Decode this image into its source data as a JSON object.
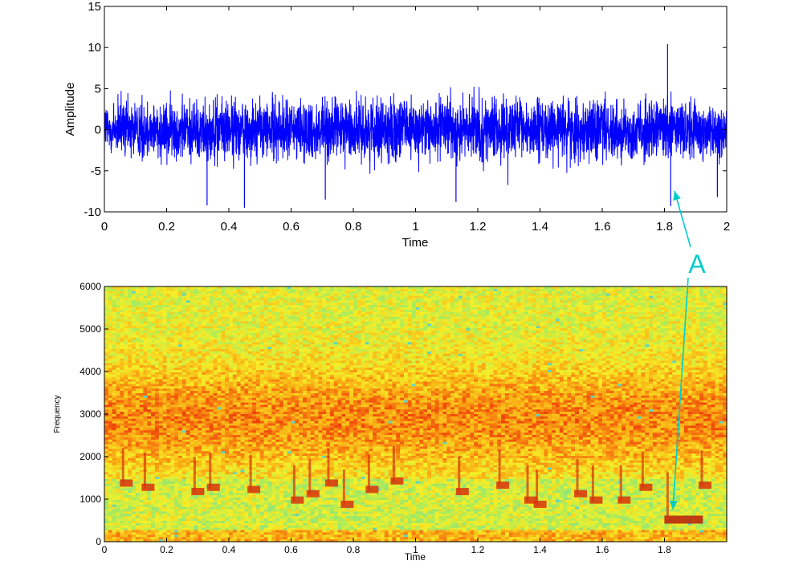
{
  "chart_data": [
    {
      "type": "line",
      "xlabel": "Time",
      "ylabel": "Amplitude",
      "xlim": [
        0,
        2
      ],
      "ylim": [
        -10,
        15
      ],
      "x_ticks": [
        "0",
        "0.2",
        "0.4",
        "0.6",
        "0.8",
        "1",
        "1.2",
        "1.4",
        "1.6",
        "1.8",
        "2"
      ],
      "y_ticks": [
        "-10",
        "-5",
        "0",
        "5",
        "10",
        "15"
      ],
      "series_color": "#0000ff",
      "grid": false,
      "description": "dense noise-like waveform roughly within ±6 amplitude, with peaks near ±9 and a spike to about 10.4 at t≈1.81",
      "peaks": [
        {
          "x": 0.33,
          "y": -9.2
        },
        {
          "x": 0.45,
          "y": -9.5
        },
        {
          "x": 0.71,
          "y": -8.5
        },
        {
          "x": 1.13,
          "y": -8.8
        },
        {
          "x": 1.81,
          "y": 10.4
        },
        {
          "x": 1.82,
          "y": -9.3
        },
        {
          "x": 1.97,
          "y": -8.2
        }
      ]
    },
    {
      "type": "heatmap",
      "xlabel": "Time",
      "ylabel": "Frequency",
      "xlim": [
        0,
        2
      ],
      "ylim": [
        0,
        6000
      ],
      "x_ticks": [
        "0",
        "0.2",
        "0.4",
        "0.6",
        "0.8",
        "1",
        "1.2",
        "1.4",
        "1.6",
        "1.8"
      ],
      "y_ticks": [
        "0",
        "1000",
        "2000",
        "3000",
        "4000",
        "5000",
        "6000"
      ],
      "colormap": "jet (upper range: cyan-yellow-orange-red)",
      "description": "broadband energy concentrated between ~1500 and ~4000 Hz, with short low-frequency streaks around 800-1500 Hz and a strong tail near 500 Hz at t≈1.8",
      "streaks": [
        {
          "x": 0.06,
          "f": 1350
        },
        {
          "x": 0.13,
          "f": 1250
        },
        {
          "x": 0.29,
          "f": 1150
        },
        {
          "x": 0.34,
          "f": 1250
        },
        {
          "x": 0.47,
          "f": 1200
        },
        {
          "x": 0.61,
          "f": 950
        },
        {
          "x": 0.66,
          "f": 1100
        },
        {
          "x": 0.72,
          "f": 1350
        },
        {
          "x": 0.77,
          "f": 850
        },
        {
          "x": 0.85,
          "f": 1200
        },
        {
          "x": 0.93,
          "f": 1400
        },
        {
          "x": 1.14,
          "f": 1150
        },
        {
          "x": 1.27,
          "f": 1300
        },
        {
          "x": 1.36,
          "f": 950
        },
        {
          "x": 1.39,
          "f": 850
        },
        {
          "x": 1.52,
          "f": 1100
        },
        {
          "x": 1.57,
          "f": 950
        },
        {
          "x": 1.66,
          "f": 950
        },
        {
          "x": 1.73,
          "f": 1250
        },
        {
          "x": 1.81,
          "f": 500
        },
        {
          "x": 1.92,
          "f": 1300
        }
      ]
    }
  ],
  "annotation": {
    "label": "A",
    "color": "#00cccc"
  }
}
